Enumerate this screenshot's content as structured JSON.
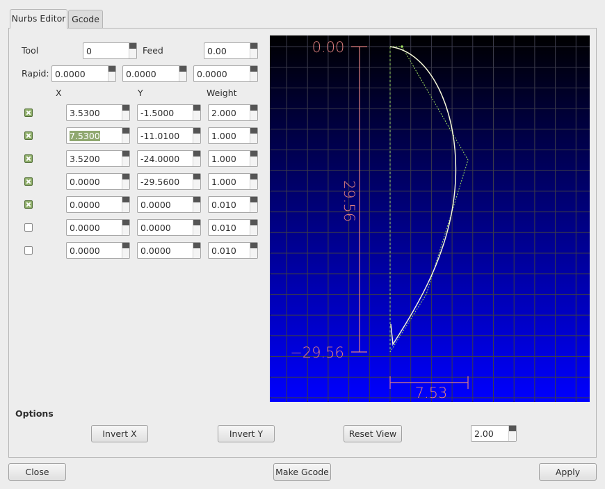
{
  "tabs": [
    {
      "label": "Nurbs Editor",
      "active": true
    },
    {
      "label": "Gcode",
      "active": false
    }
  ],
  "form": {
    "tool": {
      "label": "Tool",
      "value": "0"
    },
    "feed": {
      "label": "Feed",
      "value": "0.00"
    },
    "rapid": {
      "label": "Rapid:",
      "values": [
        "0.0000",
        "0.0000",
        "0.0000"
      ]
    },
    "headers": [
      "X",
      "Y",
      "Weight"
    ],
    "rows": [
      {
        "checked": true,
        "x": "3.5300",
        "y": "-1.5000",
        "weight": "2.000"
      },
      {
        "checked": true,
        "x": "7.5300",
        "y": "-11.0100",
        "weight": "1.000"
      },
      {
        "checked": true,
        "x": "3.5200",
        "y": "-24.0000",
        "weight": "1.000"
      },
      {
        "checked": true,
        "x": "0.0000",
        "y": "-29.5600",
        "weight": "1.000"
      },
      {
        "checked": true,
        "x": "0.0000",
        "y": "0.0000",
        "weight": "0.010"
      },
      {
        "checked": false,
        "x": "0.0000",
        "y": "0.0000",
        "weight": "0.010"
      },
      {
        "checked": false,
        "x": "0.0000",
        "y": "0.0000",
        "weight": "0.010"
      }
    ]
  },
  "view": {
    "top_label": "0.00",
    "height_label": "29.56",
    "bottom_label": "−29.56",
    "width_label": "7.53"
  },
  "options": {
    "title": "Options",
    "buttons": [
      "Invert X",
      "Invert Y",
      "Reset View"
    ],
    "zoom": "2.00"
  },
  "footer": [
    "Close",
    "Make Gcode",
    "Apply"
  ]
}
